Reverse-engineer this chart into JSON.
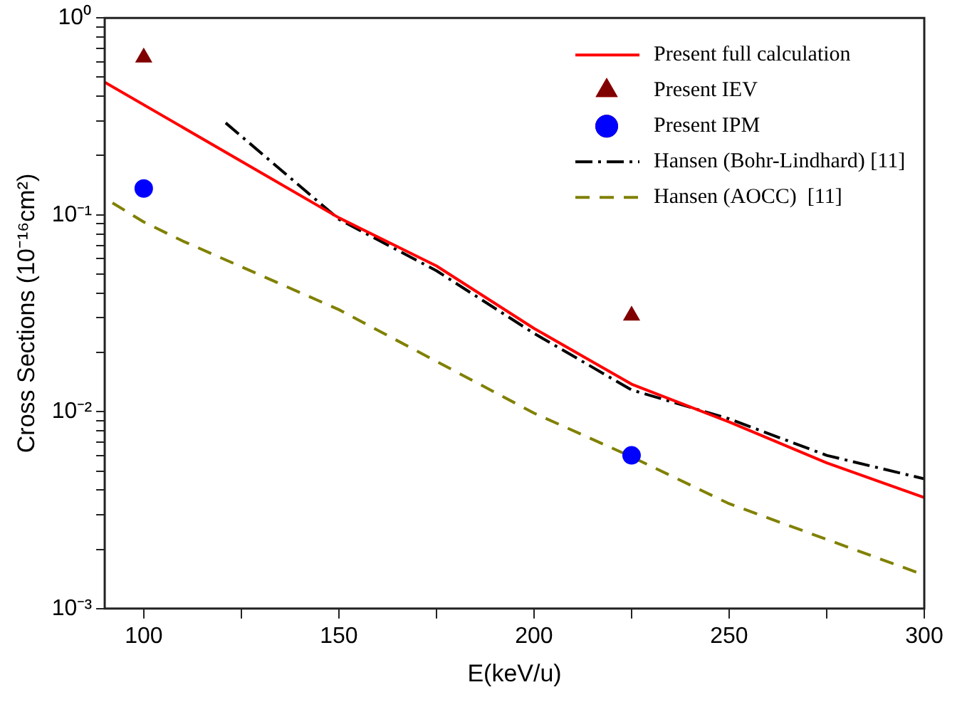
{
  "chart_data": {
    "type": "line",
    "xlabel": "E(keV/u)",
    "ylabel": "Cross Sections (10⁻¹⁶cm²)",
    "xlim": [
      90,
      300
    ],
    "xticks": [
      100,
      {
        "value": 125,
        "label": null
      },
      150,
      {
        "value": 175,
        "label": null
      },
      200,
      {
        "value": 225,
        "label": null
      },
      250,
      {
        "value": 275,
        "label": null
      },
      300
    ],
    "ylim": [
      0.001,
      1
    ],
    "yticks": [
      {
        "value": 0.001,
        "label": "10⁻³"
      },
      {
        "value": 0.002,
        "label": null
      },
      {
        "value": 0.003,
        "label": null
      },
      {
        "value": 0.004,
        "label": null
      },
      {
        "value": 0.005,
        "label": null
      },
      {
        "value": 0.006,
        "label": null
      },
      {
        "value": 0.007,
        "label": null
      },
      {
        "value": 0.008,
        "label": null
      },
      {
        "value": 0.009,
        "label": null
      },
      {
        "value": 0.01,
        "label": "10⁻²"
      },
      {
        "value": 0.02,
        "label": null
      },
      {
        "value": 0.03,
        "label": null
      },
      {
        "value": 0.04,
        "label": null
      },
      {
        "value": 0.05,
        "label": null
      },
      {
        "value": 0.06,
        "label": null
      },
      {
        "value": 0.07,
        "label": null
      },
      {
        "value": 0.08,
        "label": null
      },
      {
        "value": 0.09,
        "label": null
      },
      {
        "value": 0.1,
        "label": "10⁻¹"
      },
      {
        "value": 0.2,
        "label": null
      },
      {
        "value": 0.3,
        "label": null
      },
      {
        "value": 0.4,
        "label": null
      },
      {
        "value": 0.5,
        "label": null
      },
      {
        "value": 0.6,
        "label": null
      },
      {
        "value": 0.7,
        "label": null
      },
      {
        "value": 0.8,
        "label": null
      },
      {
        "value": 0.9,
        "label": null
      },
      {
        "value": 1,
        "label": "10⁰"
      }
    ],
    "log": "y",
    "grid": false,
    "legend": "top right",
    "series": [
      {
        "name": "Present full calculation",
        "color": "#ff0000",
        "line_style": "solid",
        "marker": "none",
        "x": [
          90,
          150,
          175,
          200,
          225,
          250,
          275,
          300
        ],
        "values": [
          0.472,
          0.0966,
          0.055,
          0.0265,
          0.0138,
          0.00887,
          0.0055,
          0.00366
        ]
      },
      {
        "name": "Present IEV",
        "type": "scatter",
        "color": "#800000",
        "marker": "triangle",
        "x": [
          100,
          225
        ],
        "values": [
          0.63,
          0.0308
        ]
      },
      {
        "name": "Present IPM",
        "type": "scatter",
        "color": "#0000ff",
        "marker": "circle",
        "x": [
          100,
          225
        ],
        "values": [
          0.136,
          0.006
        ]
      },
      {
        "name": "Hansen (Bohr-Lindhard) [11]",
        "color": "#000000",
        "line_style": "dashdot",
        "marker": "none",
        "x": [
          121,
          150,
          175,
          200,
          225,
          250,
          275,
          300
        ],
        "values": [
          0.293,
          0.095,
          0.052,
          0.025,
          0.0129,
          0.0092,
          0.006,
          0.00456
        ]
      },
      {
        "name": "Hansen (AOCC)  [11]",
        "color": "#808000",
        "line_style": "dashed",
        "marker": "none",
        "x": [
          92,
          100,
          110,
          150,
          200,
          225,
          250,
          298
        ],
        "values": [
          0.115,
          0.092,
          0.0736,
          0.033,
          0.00984,
          0.0059,
          0.00341,
          0.00153
        ]
      }
    ]
  }
}
